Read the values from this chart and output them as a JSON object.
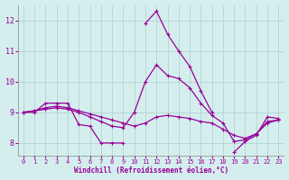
{
  "xlabel": "Windchill (Refroidissement éolien,°C)",
  "background_color": "#d4eeee",
  "grid_color": "#b0cccc",
  "line_color": "#990099",
  "xlim": [
    -0.5,
    23.5
  ],
  "ylim": [
    7.6,
    12.5
  ],
  "xticks": [
    0,
    1,
    2,
    3,
    4,
    5,
    6,
    7,
    8,
    9,
    10,
    11,
    12,
    13,
    14,
    15,
    16,
    17,
    18,
    19,
    20,
    21,
    22,
    23
  ],
  "yticks": [
    8,
    9,
    10,
    11,
    12
  ],
  "series": [
    [
      9.0,
      9.0,
      9.3,
      9.3,
      9.3,
      8.6,
      8.55,
      8.0,
      8.0,
      8.0,
      null,
      11.9,
      12.3,
      11.55,
      11.0,
      10.5,
      9.7,
      9.0,
      null,
      7.7,
      8.05,
      8.25,
      8.85,
      8.8
    ],
    [
      9.0,
      9.05,
      9.15,
      9.2,
      9.15,
      9.05,
      8.95,
      8.85,
      8.75,
      8.65,
      8.55,
      8.65,
      8.85,
      8.9,
      8.85,
      8.8,
      8.7,
      8.65,
      8.45,
      8.25,
      8.15,
      8.3,
      8.65,
      8.75
    ],
    [
      9.0,
      9.05,
      9.1,
      9.15,
      9.1,
      9.0,
      8.85,
      8.7,
      8.55,
      8.5,
      9.0,
      10.0,
      10.55,
      10.2,
      10.1,
      9.8,
      9.3,
      8.9,
      8.65,
      8.05,
      8.1,
      8.3,
      8.7,
      8.75
    ]
  ],
  "marker": "+"
}
